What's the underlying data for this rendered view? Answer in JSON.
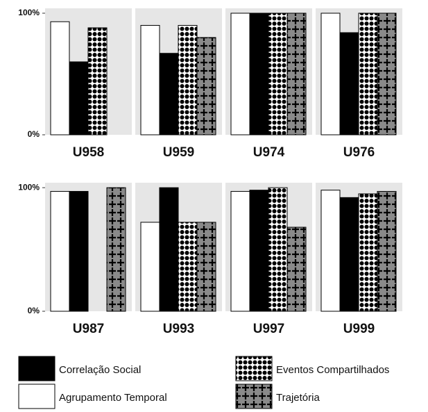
{
  "chart_data": {
    "type": "bar",
    "categories": [
      "U958",
      "U959",
      "U974",
      "U976",
      "U987",
      "U993",
      "U997",
      "U999"
    ],
    "series": [
      {
        "name": "Agrupamento Temporal",
        "color": "#ffffff",
        "values": [
          93,
          90,
          100,
          100,
          97,
          72,
          97,
          98
        ]
      },
      {
        "name": "Correlação Social",
        "color": "#000000",
        "values": [
          60,
          67,
          100,
          84,
          97,
          100,
          98,
          92
        ]
      },
      {
        "name": "Eventos Compartilhados",
        "color": "#ffffff",
        "pattern": "dots",
        "values": [
          88,
          90,
          100,
          100,
          0,
          72,
          100,
          95
        ]
      },
      {
        "name": "Trajetória",
        "color": "#8a8a8a",
        "pattern": "crosses",
        "values": [
          0,
          80,
          100,
          100,
          100,
          72,
          68,
          97
        ]
      }
    ],
    "ylim": [
      0,
      104
    ],
    "yticks": [
      {
        "value": 0,
        "label": "0%"
      },
      {
        "value": 100,
        "label": "100%"
      }
    ],
    "legend_order": [
      1,
      0,
      2,
      3
    ]
  }
}
